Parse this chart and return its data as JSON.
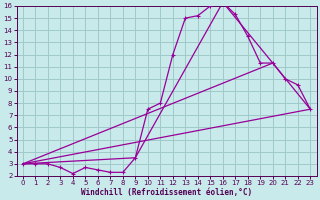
{
  "background_color": "#c8eaea",
  "grid_color": "#a0c8c8",
  "line_color": "#990099",
  "xlabel": "Windchill (Refroidissement éolien,°C)",
  "xlabel_color": "#550055",
  "tick_color": "#550055",
  "xlim": [
    -0.5,
    23.5
  ],
  "ylim": [
    2,
    16
  ],
  "xticks": [
    0,
    1,
    2,
    3,
    4,
    5,
    6,
    7,
    8,
    9,
    10,
    11,
    12,
    13,
    14,
    15,
    16,
    17,
    18,
    19,
    20,
    21,
    22,
    23
  ],
  "yticks": [
    2,
    3,
    4,
    5,
    6,
    7,
    8,
    9,
    10,
    11,
    12,
    13,
    14,
    15,
    16
  ],
  "main_x": [
    0,
    1,
    2,
    3,
    4,
    5,
    6,
    7,
    8,
    9,
    10,
    11,
    12,
    13,
    14,
    15,
    16,
    17,
    18,
    19,
    20,
    21,
    22,
    23
  ],
  "main_y": [
    3.0,
    3.0,
    3.0,
    2.7,
    2.2,
    2.7,
    2.5,
    2.3,
    2.3,
    3.5,
    7.5,
    8.0,
    12.0,
    15.0,
    15.2,
    16.0,
    16.3,
    15.3,
    13.5,
    11.3,
    11.3,
    10.0,
    9.5,
    7.5
  ],
  "line2_x": [
    0,
    23
  ],
  "line2_y": [
    3.0,
    7.5
  ],
  "line3_x": [
    0,
    20
  ],
  "line3_y": [
    3.0,
    11.3
  ],
  "envelope_x": [
    0,
    9,
    16,
    20,
    23
  ],
  "envelope_y": [
    3.0,
    3.5,
    16.3,
    11.3,
    7.5
  ]
}
